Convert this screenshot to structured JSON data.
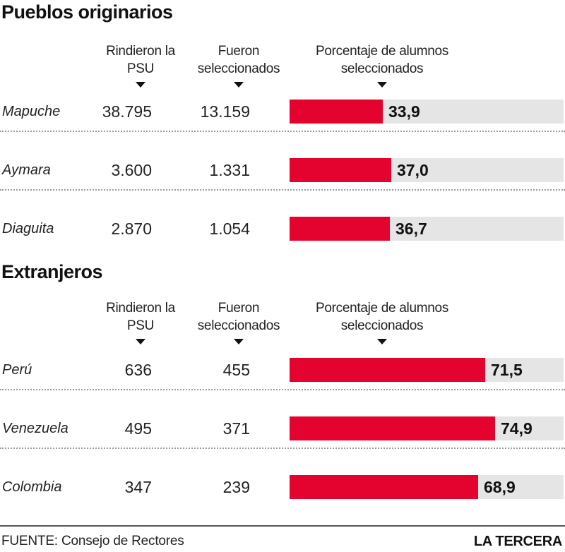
{
  "chart_data": [
    {
      "type": "bar",
      "title": "Pueblos originarios",
      "columns": [
        "Rindieron la PSU",
        "Fueron seleccionados",
        "Porcentaje de alumnos seleccionados"
      ],
      "categories": [
        "Mapuche",
        "Aymara",
        "Diaguita"
      ],
      "rindieron": [
        "38.795",
        "3.600",
        "2.870"
      ],
      "seleccionados": [
        "13.159",
        "1.331",
        "1.054"
      ],
      "values": [
        33.9,
        37.0,
        36.7
      ],
      "value_labels": [
        "33,9",
        "37,0",
        "36,7"
      ],
      "xlim": [
        0,
        100
      ],
      "bar_color": "#e4032e",
      "track_color": "#e5e5e5"
    },
    {
      "type": "bar",
      "title": "Extranjeros",
      "columns": [
        "Rindieron la PSU",
        "Fueron seleccionados",
        "Porcentaje de alumnos seleccionados"
      ],
      "categories": [
        "Perú",
        "Venezuela",
        "Colombia"
      ],
      "rindieron": [
        "636",
        "495",
        "347"
      ],
      "seleccionados": [
        "455",
        "371",
        "239"
      ],
      "values": [
        71.5,
        74.9,
        68.9
      ],
      "value_labels": [
        "71,5",
        "74,9",
        "68,9"
      ],
      "xlim": [
        0,
        100
      ],
      "bar_color": "#e4032e",
      "track_color": "#e5e5e5"
    }
  ],
  "footer": {
    "source": "FUENTE: Consejo de Rectores",
    "brand": "LA TERCERA"
  }
}
